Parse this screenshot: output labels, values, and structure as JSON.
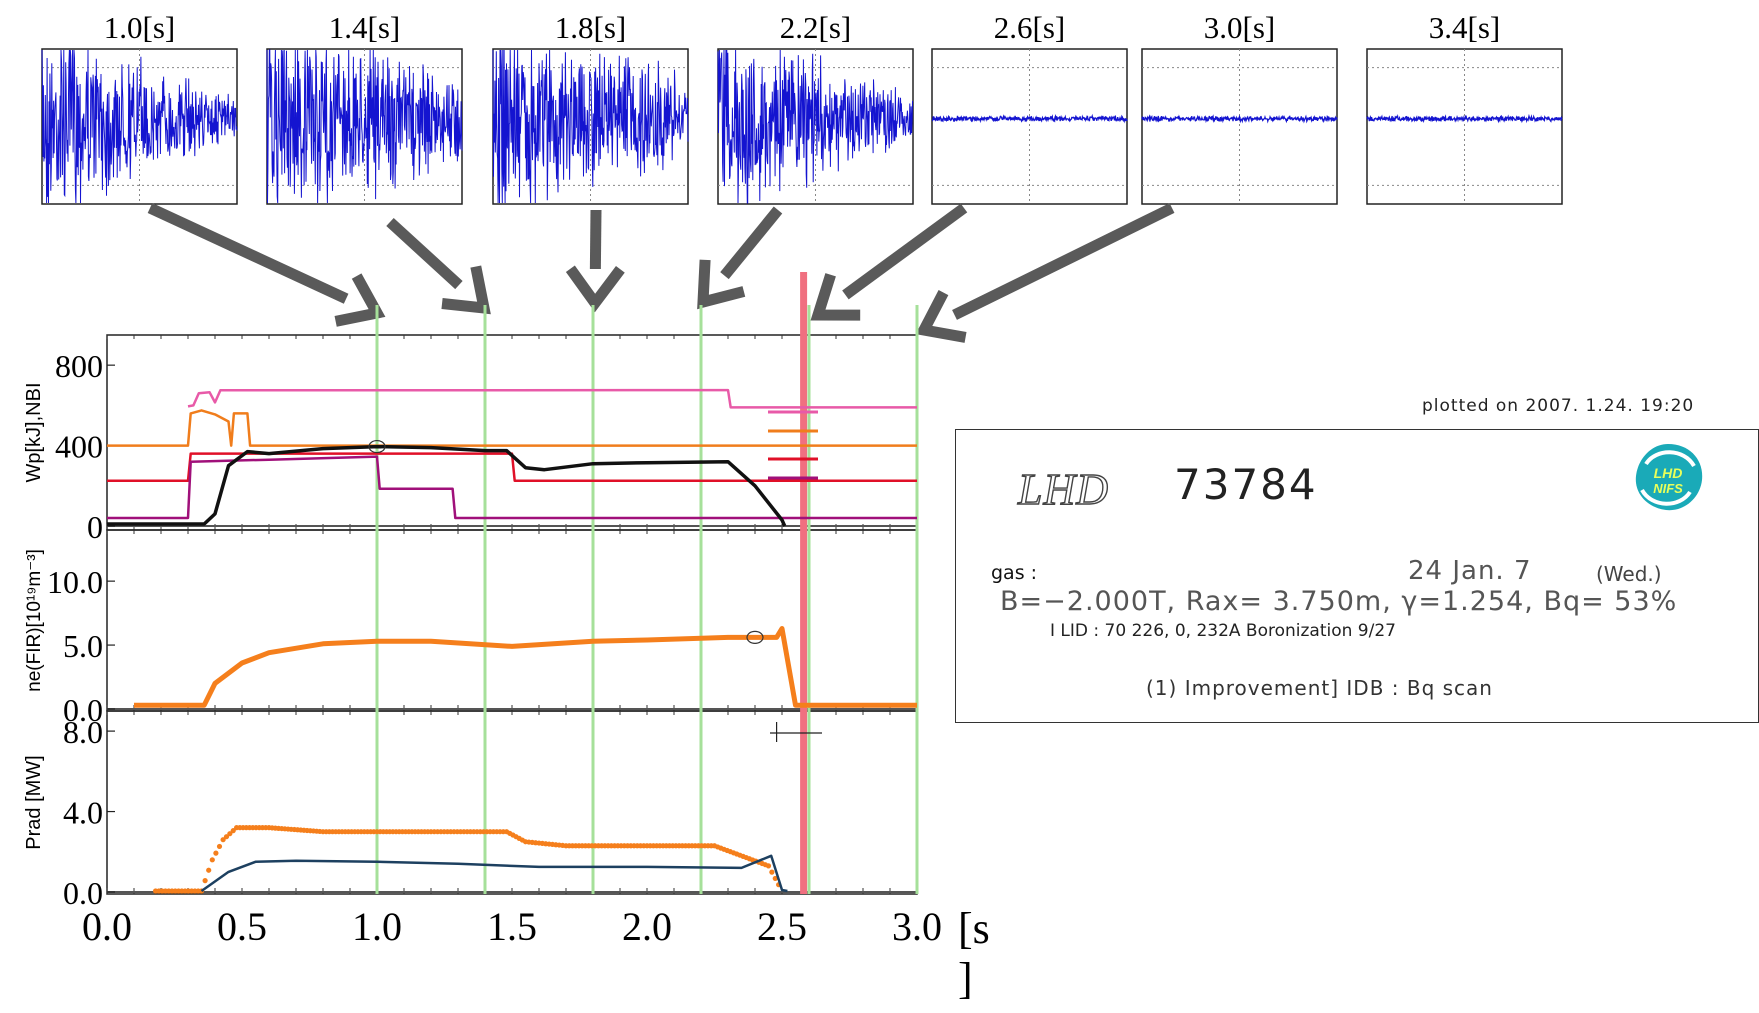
{
  "chart_data": {
    "mini_panels": [
      {
        "label": "1.0[s]",
        "state": "unstable"
      },
      {
        "label": "1.4[s]",
        "state": "unstable"
      },
      {
        "label": "1.8[s]",
        "state": "unstable"
      },
      {
        "label": "2.2[s]",
        "state": "unstable"
      },
      {
        "label": "2.6[s]",
        "state": "stable"
      },
      {
        "label": "3.0[s]",
        "state": "stable"
      },
      {
        "label": "3.4[s]",
        "state": "stable"
      }
    ],
    "x_ticks": [
      "0.0",
      "0.5",
      "1.0",
      "1.5",
      "2.0",
      "2.5",
      "3.0"
    ],
    "xlim": [
      0,
      3.0
    ],
    "x_unit": "[s\n]",
    "marker_times": [
      1.0,
      1.4,
      1.8,
      2.2,
      2.6,
      3.0
    ],
    "collapse_time": 2.58,
    "panels": [
      {
        "ylabel": "Wp[kJ],NBI",
        "yticks": [
          "800",
          "400",
          "0"
        ],
        "ylim": [
          0,
          950
        ],
        "series": [
          {
            "color": "#e85aa8",
            "points": [
              [
                0.3,
                595
              ],
              [
                0.32,
                600
              ],
              [
                0.34,
                660
              ],
              [
                0.38,
                665
              ],
              [
                0.4,
                615
              ],
              [
                0.42,
                675
              ],
              [
                1.5,
                675
              ],
              [
                2.0,
                676
              ],
              [
                2.3,
                676
              ],
              [
                2.31,
                590
              ],
              [
                3.0,
                590
              ]
            ]
          },
          {
            "color": "#f07d1c",
            "points": [
              [
                0.0,
                400
              ],
              [
                0.3,
                400
              ],
              [
                0.31,
                560
              ],
              [
                0.35,
                575
              ],
              [
                0.4,
                555
              ],
              [
                0.45,
                520
              ],
              [
                0.46,
                400
              ],
              [
                0.47,
                560
              ],
              [
                0.52,
                560
              ],
              [
                0.53,
                400
              ],
              [
                3.0,
                400
              ]
            ]
          },
          {
            "color": "#e01028",
            "points": [
              [
                0.0,
                225
              ],
              [
                0.3,
                225
              ],
              [
                0.31,
                360
              ],
              [
                1.5,
                360
              ],
              [
                1.51,
                225
              ],
              [
                3.0,
                225
              ]
            ]
          },
          {
            "color": "#a0107a",
            "points": [
              [
                0.0,
                40
              ],
              [
                0.3,
                40
              ],
              [
                0.31,
                320
              ],
              [
                0.6,
                330
              ],
              [
                1.0,
                345
              ],
              [
                1.01,
                185
              ],
              [
                1.28,
                185
              ],
              [
                1.29,
                40
              ],
              [
                3.0,
                40
              ]
            ]
          },
          {
            "color": "#111111",
            "points": [
              [
                0.0,
                10
              ],
              [
                0.36,
                10
              ],
              [
                0.4,
                60
              ],
              [
                0.45,
                300
              ],
              [
                0.52,
                370
              ],
              [
                0.6,
                360
              ],
              [
                0.8,
                385
              ],
              [
                1.0,
                395
              ],
              [
                1.2,
                390
              ],
              [
                1.4,
                375
              ],
              [
                1.48,
                375
              ],
              [
                1.55,
                290
              ],
              [
                1.62,
                280
              ],
              [
                1.8,
                310
              ],
              [
                2.0,
                315
              ],
              [
                2.3,
                320
              ],
              [
                2.4,
                200
              ],
              [
                2.5,
                30
              ],
              [
                2.51,
                0
              ]
            ]
          }
        ]
      },
      {
        "ylabel": "ne(FIR)[10¹⁹m⁻³]",
        "yticks": [
          "10.0",
          "5.0",
          "0.0"
        ],
        "ylim": [
          0,
          14
        ],
        "series": [
          {
            "color": "#f57f1c",
            "points": [
              [
                0.1,
                0.3
              ],
              [
                0.36,
                0.3
              ],
              [
                0.4,
                2.0
              ],
              [
                0.5,
                3.6
              ],
              [
                0.6,
                4.4
              ],
              [
                0.8,
                5.1
              ],
              [
                1.0,
                5.3
              ],
              [
                1.2,
                5.3
              ],
              [
                1.5,
                4.9
              ],
              [
                1.8,
                5.3
              ],
              [
                2.0,
                5.4
              ],
              [
                2.3,
                5.6
              ],
              [
                2.48,
                5.6
              ],
              [
                2.5,
                6.3
              ],
              [
                2.55,
                0.3
              ],
              [
                3.0,
                0.3
              ]
            ]
          }
        ]
      },
      {
        "ylabel": "Prad [MW]",
        "yticks": [
          "8.0",
          "4.0",
          "0.0"
        ],
        "ylim": [
          0,
          9
        ],
        "series": [
          {
            "color": "#f57f1c",
            "style": "dots",
            "points": [
              [
                0.18,
                0.05
              ],
              [
                0.35,
                0.05
              ],
              [
                0.39,
                1.6
              ],
              [
                0.43,
                2.6
              ],
              [
                0.48,
                3.2
              ],
              [
                0.6,
                3.2
              ],
              [
                0.8,
                3.0
              ],
              [
                1.0,
                3.0
              ],
              [
                1.2,
                3.0
              ],
              [
                1.48,
                3.0
              ],
              [
                1.55,
                2.5
              ],
              [
                1.7,
                2.3
              ],
              [
                2.0,
                2.3
              ],
              [
                2.25,
                2.3
              ],
              [
                2.45,
                1.3
              ],
              [
                2.5,
                0.05
              ]
            ]
          },
          {
            "color": "#1d4060",
            "style": "line",
            "points": [
              [
                0.35,
                0.05
              ],
              [
                0.45,
                1.0
              ],
              [
                0.55,
                1.5
              ],
              [
                0.7,
                1.55
              ],
              [
                1.0,
                1.5
              ],
              [
                1.3,
                1.4
              ],
              [
                1.6,
                1.25
              ],
              [
                2.0,
                1.25
              ],
              [
                2.35,
                1.2
              ],
              [
                2.46,
                1.8
              ],
              [
                2.5,
                0.1
              ],
              [
                2.52,
                0.05
              ]
            ]
          }
        ]
      }
    ]
  },
  "info": {
    "plotted": "plotted on  2007. 1.24. 19:20",
    "title_italic": "LHD",
    "shot": "73784",
    "gas": "gas :",
    "date": "24 Jan. 7",
    "day": "(Wed.)",
    "params": "B=−2.000T, Rax= 3.750m, γ=1.254, Bq=  53%",
    "ilid": "I LID : 70     226,    0,  232A  Boronization 9/27",
    "idb": "(1) Improvement] IDB : Bq scan",
    "logo_text": "LHD NIFS"
  },
  "colors": {
    "trace_blue": "#1414d0",
    "arrow_gray": "#5a5a5a",
    "marker_green": "#a6e09a",
    "collapse_red": "#f07080"
  }
}
